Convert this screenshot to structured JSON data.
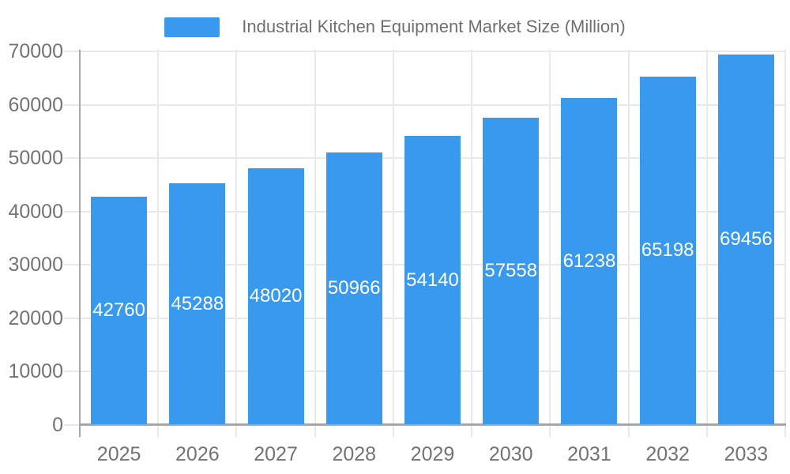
{
  "page": {
    "background": "#ffffff"
  },
  "chart_data": {
    "type": "bar",
    "title": "Industrial Kitchen Equipment Market Size (Million)",
    "legend": {
      "position": "top",
      "entries": [
        "Industrial Kitchen Equipment Market Size (Million)"
      ]
    },
    "categories": [
      "2025",
      "2026",
      "2027",
      "2028",
      "2029",
      "2030",
      "2031",
      "2032",
      "2033"
    ],
    "series": [
      {
        "name": "Industrial Kitchen Equipment Market Size (Million)",
        "values": [
          42760,
          45288,
          48020,
          50966,
          54140,
          57558,
          61238,
          65198,
          69456
        ]
      }
    ],
    "xlabel": "",
    "ylabel": "",
    "ylim": [
      0,
      70000
    ],
    "yticks": [
      0,
      10000,
      20000,
      30000,
      40000,
      50000,
      60000,
      70000
    ],
    "grid": true,
    "value_label_position": "inside-center",
    "colors": {
      "bar": "#3999EC",
      "grid_line": "#E9E9E9",
      "axis_line": "#A6A6A6",
      "tick_label": "#737373",
      "legend_text": "#707070",
      "value_label": "#FFFFFF"
    }
  }
}
